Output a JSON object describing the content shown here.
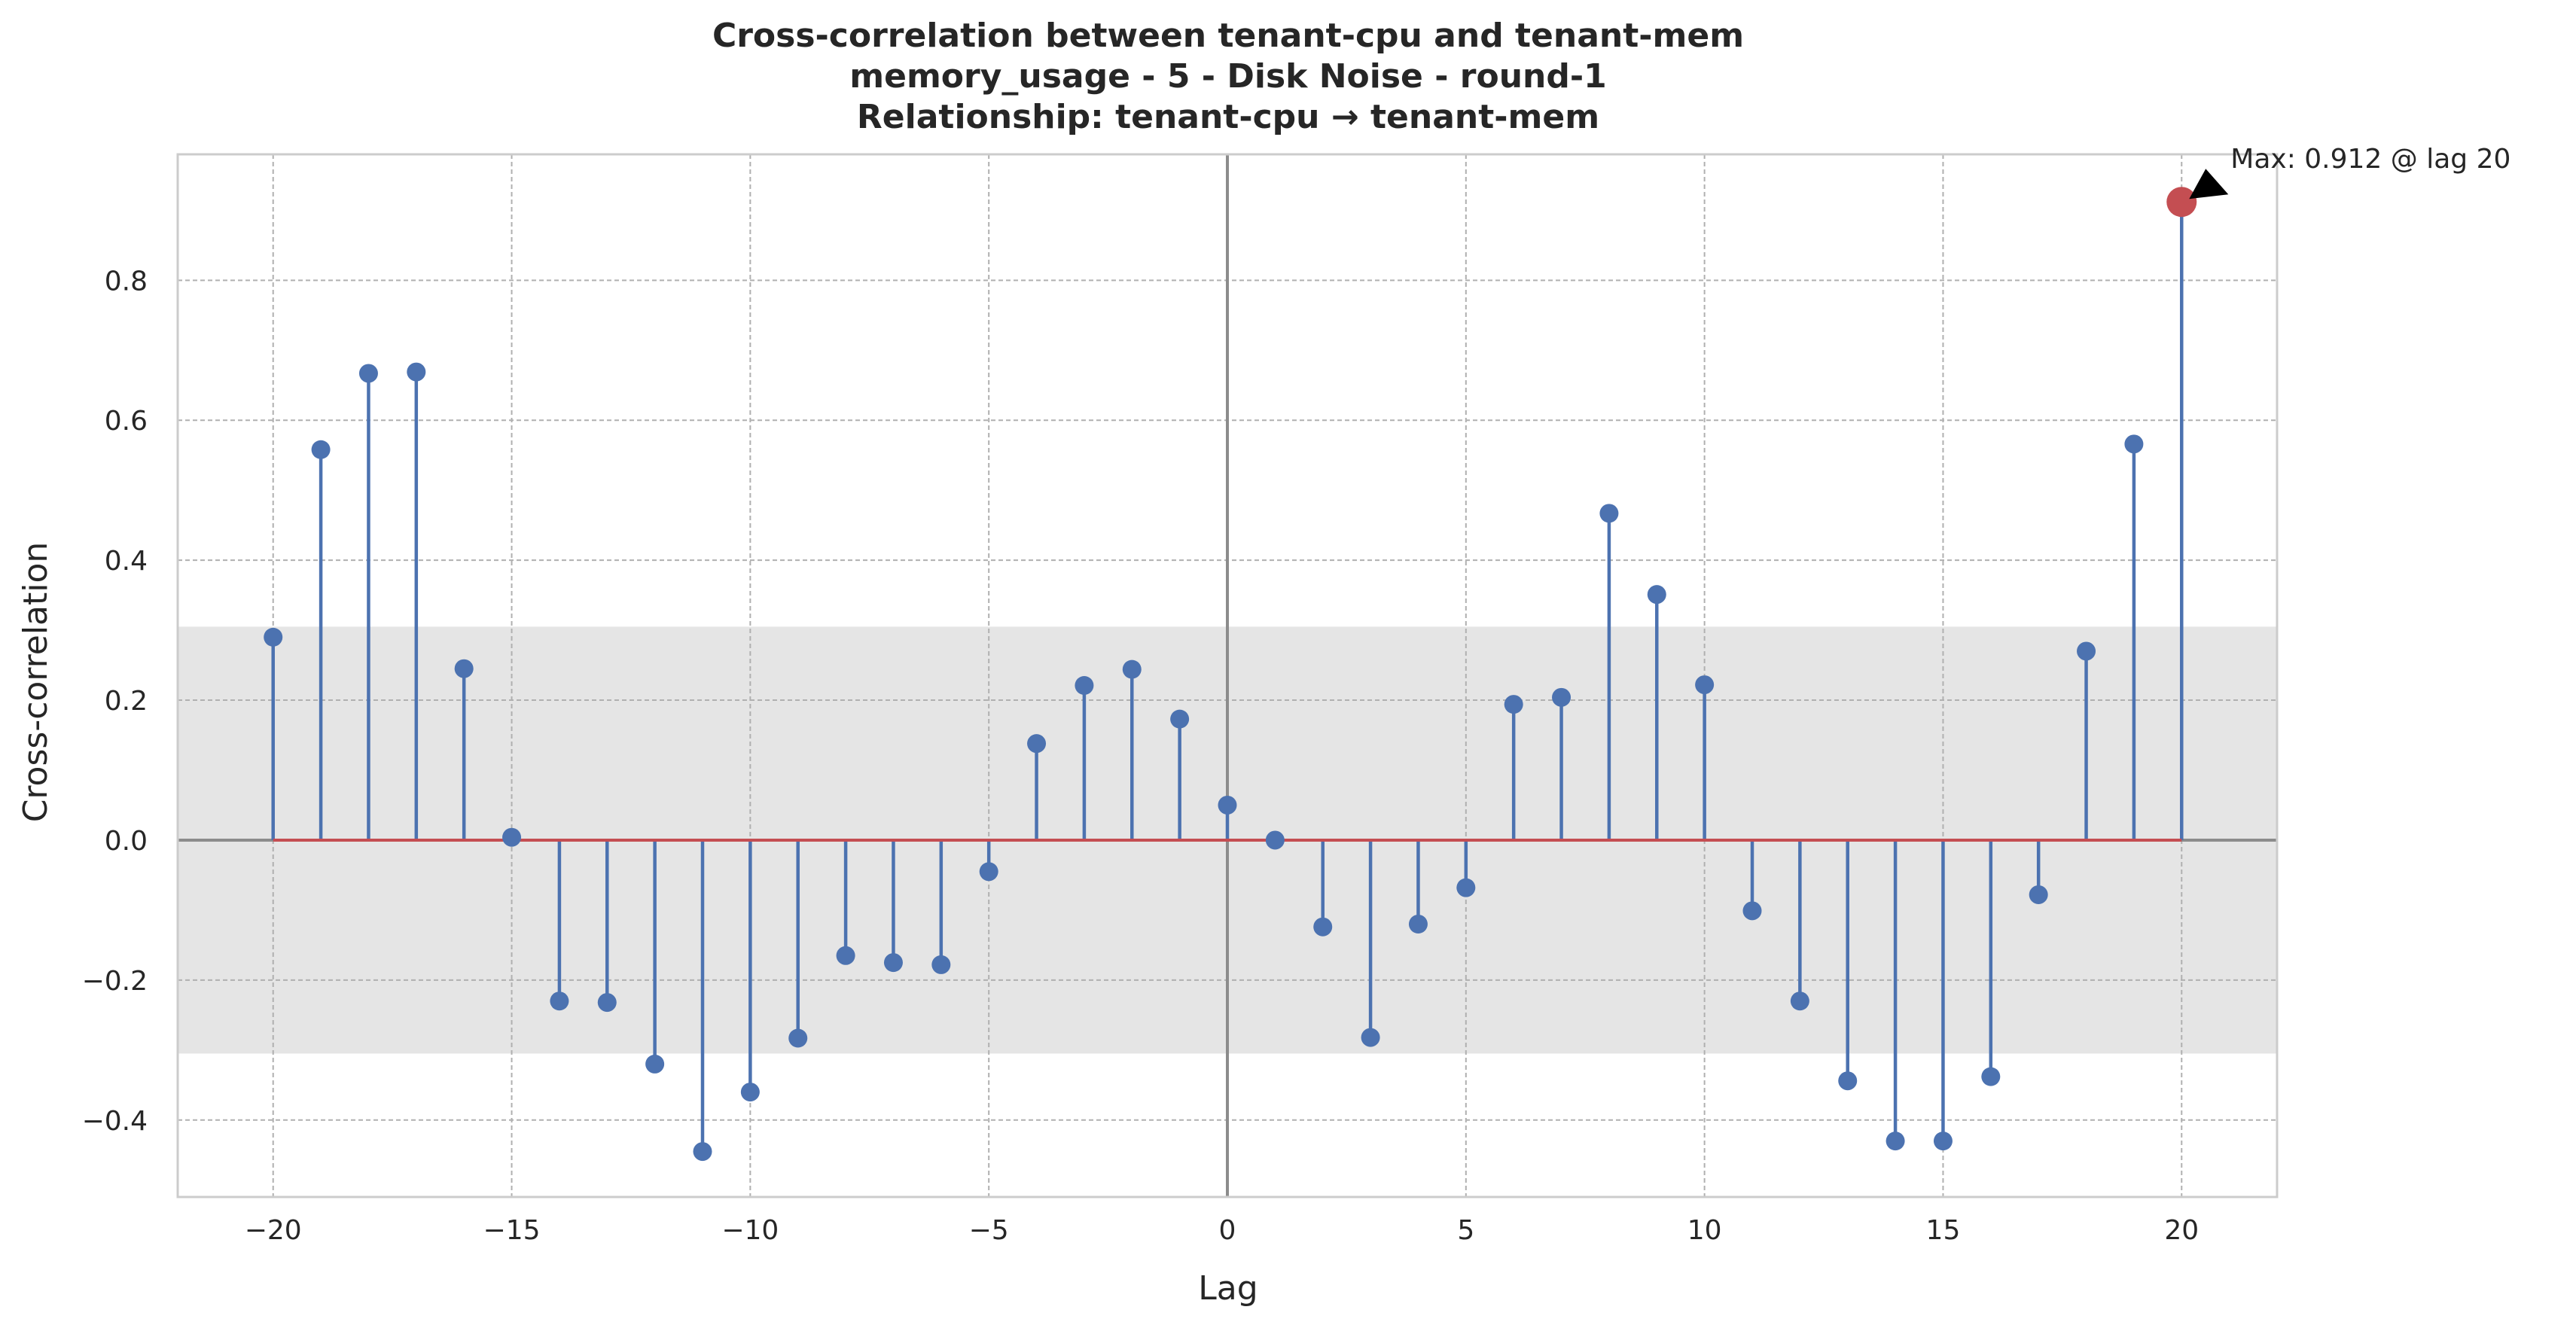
{
  "chart_data": {
    "type": "stem",
    "title_lines": [
      "Cross-correlation between tenant-cpu and tenant-mem",
      "memory_usage - 5 - Disk Noise - round-1",
      "Relationship: tenant-cpu → tenant-mem"
    ],
    "xlabel": "Lag",
    "ylabel": "Cross-correlation",
    "xlim": [
      -22,
      22
    ],
    "ylim": [
      -0.51,
      0.98
    ],
    "xticks": [
      -20,
      -15,
      -10,
      -5,
      0,
      5,
      10,
      15,
      20
    ],
    "xtick_labels": [
      "−20",
      "−15",
      "−10",
      "−5",
      "0",
      "5",
      "10",
      "15",
      "20"
    ],
    "yticks": [
      -0.4,
      -0.2,
      0.0,
      0.2,
      0.4,
      0.6,
      0.8
    ],
    "ytick_labels": [
      "−0.4",
      "−0.2",
      "0.0",
      "0.2",
      "0.4",
      "0.6",
      "0.8"
    ],
    "grid": true,
    "confidence_band": [
      -0.305,
      0.305
    ],
    "x": [
      -20,
      -19,
      -18,
      -17,
      -16,
      -15,
      -14,
      -13,
      -12,
      -11,
      -10,
      -9,
      -8,
      -7,
      -6,
      -5,
      -4,
      -3,
      -2,
      -1,
      0,
      1,
      2,
      3,
      4,
      5,
      6,
      7,
      8,
      9,
      10,
      11,
      12,
      13,
      14,
      15,
      16,
      17,
      18,
      19,
      20
    ],
    "values": [
      0.29,
      0.558,
      0.667,
      0.669,
      0.245,
      0.004,
      -0.23,
      -0.232,
      -0.32,
      -0.445,
      -0.36,
      -0.283,
      -0.165,
      -0.175,
      -0.178,
      -0.045,
      0.138,
      0.221,
      0.244,
      0.173,
      0.05,
      0.0,
      -0.124,
      -0.282,
      -0.12,
      -0.068,
      0.194,
      0.204,
      0.467,
      0.351,
      0.222,
      -0.101,
      -0.23,
      -0.344,
      -0.43,
      -0.43,
      -0.338,
      -0.078,
      0.27,
      0.566,
      0.912
    ],
    "max_point": {
      "lag": 20,
      "value": 0.912
    },
    "annotation": "Max: 0.912 @ lag 20",
    "colors": {
      "stem": "#4c72b0",
      "baseline": "#c44e52",
      "max_marker": "#c44e52",
      "band": "#e5e5e5",
      "grid": "#b0b0b0",
      "zero_lines": "#8c8c8c",
      "frame": "#cccccc"
    }
  }
}
